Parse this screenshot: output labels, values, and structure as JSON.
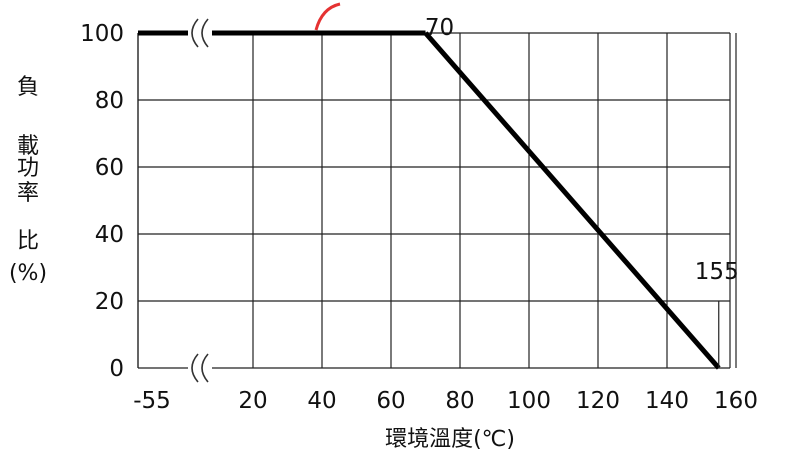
{
  "chart_data": {
    "type": "line",
    "title": "",
    "ylabel_lines": [
      "負",
      "載",
      "功",
      "率",
      "比",
      "(%)"
    ],
    "xlabel": "環境溫度(℃)",
    "x_tick_labels": [
      "-55",
      "20",
      "40",
      "60",
      "80",
      "100",
      "120",
      "140",
      "160"
    ],
    "y_tick_labels": [
      "0",
      "20",
      "40",
      "60",
      "80",
      "100"
    ],
    "ylim": [
      0,
      100
    ],
    "xlim_main": [
      10,
      170
    ],
    "axis_break": true,
    "grid": true,
    "series": [
      {
        "x": [
          -55,
          70,
          155
        ],
        "y": [
          100,
          100,
          0
        ]
      }
    ],
    "annotations": [
      {
        "text": "70",
        "x": 70,
        "y": 100
      },
      {
        "text": "155",
        "x": 155,
        "y": 20
      }
    ]
  },
  "colors": {
    "curve": "#000000",
    "grid": "#222222",
    "watermark": "#e21c1c"
  }
}
